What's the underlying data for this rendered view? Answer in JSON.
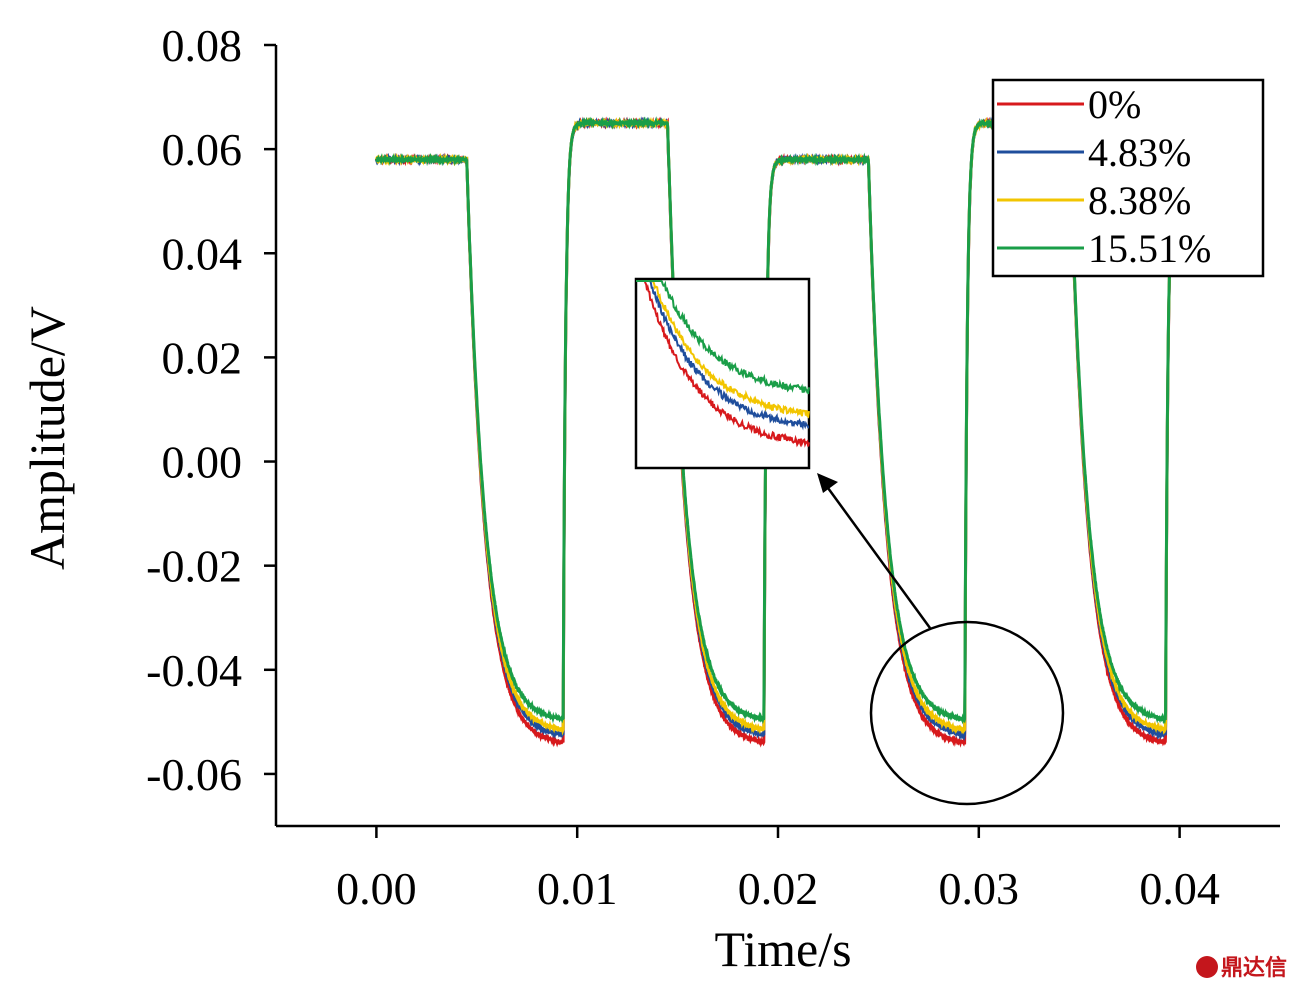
{
  "chart_data": {
    "type": "line",
    "title": "",
    "xlabel": "Time/s",
    "ylabel": "Amplitude/V",
    "xlim": [
      -0.005,
      0.045
    ],
    "ylim": [
      -0.07,
      0.08
    ],
    "xticks": [
      0.0,
      0.01,
      0.02,
      0.03,
      0.04
    ],
    "xtick_labels": [
      "0.00",
      "0.01",
      "0.02",
      "0.03",
      "0.04"
    ],
    "yticks": [
      0.08,
      0.06,
      0.04,
      0.02,
      0.0,
      -0.02,
      -0.04,
      -0.06
    ],
    "ytick_labels": [
      "0.08",
      "0.06",
      "0.04",
      "0.02",
      "0.00",
      "-0.02",
      "-0.04",
      "-0.06"
    ],
    "grid": false,
    "legend_position": "top-right",
    "waveform": {
      "period": 0.01,
      "fall_time": 0.0045,
      "rise_time": 0.0093,
      "high_level_low_half": 0.058,
      "high_level_high_half": 0.065,
      "rise_tau": 0.00012,
      "fall_tau": 0.0009
    },
    "series": [
      {
        "name": "0%",
        "color": "#d7191c",
        "low_level": -0.0545
      },
      {
        "name": "4.83%",
        "color": "#1f4e9c",
        "low_level": -0.053
      },
      {
        "name": "8.38%",
        "color": "#f2c500",
        "low_level": -0.052
      },
      {
        "name": "15.51%",
        "color": "#1a9e48",
        "low_level": -0.05
      }
    ],
    "inset": {
      "description_of_region": "zoom of falling-edge tail near t=0.029 s",
      "callout": "circle-with-arrow"
    }
  },
  "watermark": {
    "text": "鼎达信"
  }
}
